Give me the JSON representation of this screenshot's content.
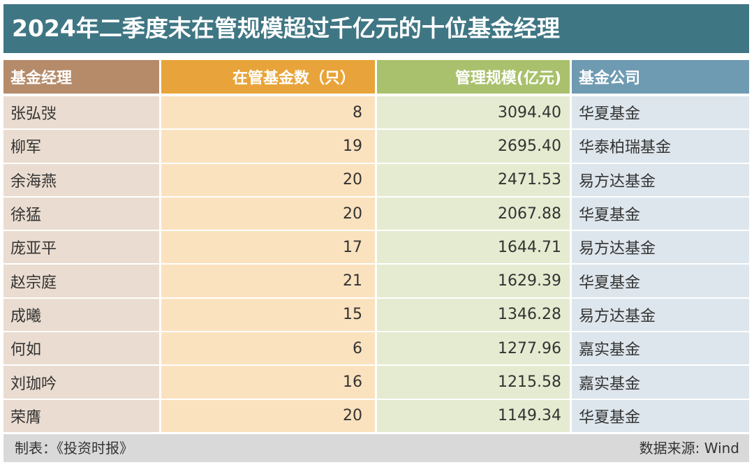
{
  "title": "2024年二季度末在管规模超过千亿元的十位基金经理",
  "headers": {
    "manager": "基金经理",
    "fund_count": "在管基金数（只）",
    "scale": "管理规模(亿元)",
    "company": "基金公司"
  },
  "rows": [
    {
      "manager": "张弘弢",
      "fund_count": "8",
      "scale": "3094.40",
      "company": "华夏基金"
    },
    {
      "manager": "柳军",
      "fund_count": "19",
      "scale": "2695.40",
      "company": "华泰柏瑞基金"
    },
    {
      "manager": "余海燕",
      "fund_count": "20",
      "scale": "2471.53",
      "company": "易方达基金"
    },
    {
      "manager": "徐猛",
      "fund_count": "20",
      "scale": "2067.88",
      "company": "华夏基金"
    },
    {
      "manager": "庞亚平",
      "fund_count": "17",
      "scale": "1644.71",
      "company": "易方达基金"
    },
    {
      "manager": "赵宗庭",
      "fund_count": "21",
      "scale": "1629.39",
      "company": "华夏基金"
    },
    {
      "manager": "成曦",
      "fund_count": "15",
      "scale": "1346.28",
      "company": "易方达基金"
    },
    {
      "manager": "何如",
      "fund_count": "6",
      "scale": "1277.96",
      "company": "嘉实基金"
    },
    {
      "manager": "刘珈吟",
      "fund_count": "16",
      "scale": "1215.58",
      "company": "嘉实基金"
    },
    {
      "manager": "荣膺",
      "fund_count": "20",
      "scale": "1149.34",
      "company": "华夏基金"
    }
  ],
  "footer": {
    "made_by": "制表：《投资时报》",
    "source": "数据来源: Wind"
  },
  "colors": {
    "title_bg": "#3f7684",
    "header_manager": "#b58b6a",
    "header_count": "#e8a43a",
    "header_scale": "#a9c16d",
    "header_company": "#6f9bb2",
    "cell_manager": "#eadcd0",
    "cell_count": "#fbe2be",
    "cell_scale": "#e5ebd0",
    "cell_company": "#dde6ec",
    "footer_bg": "#d9d9d9"
  }
}
